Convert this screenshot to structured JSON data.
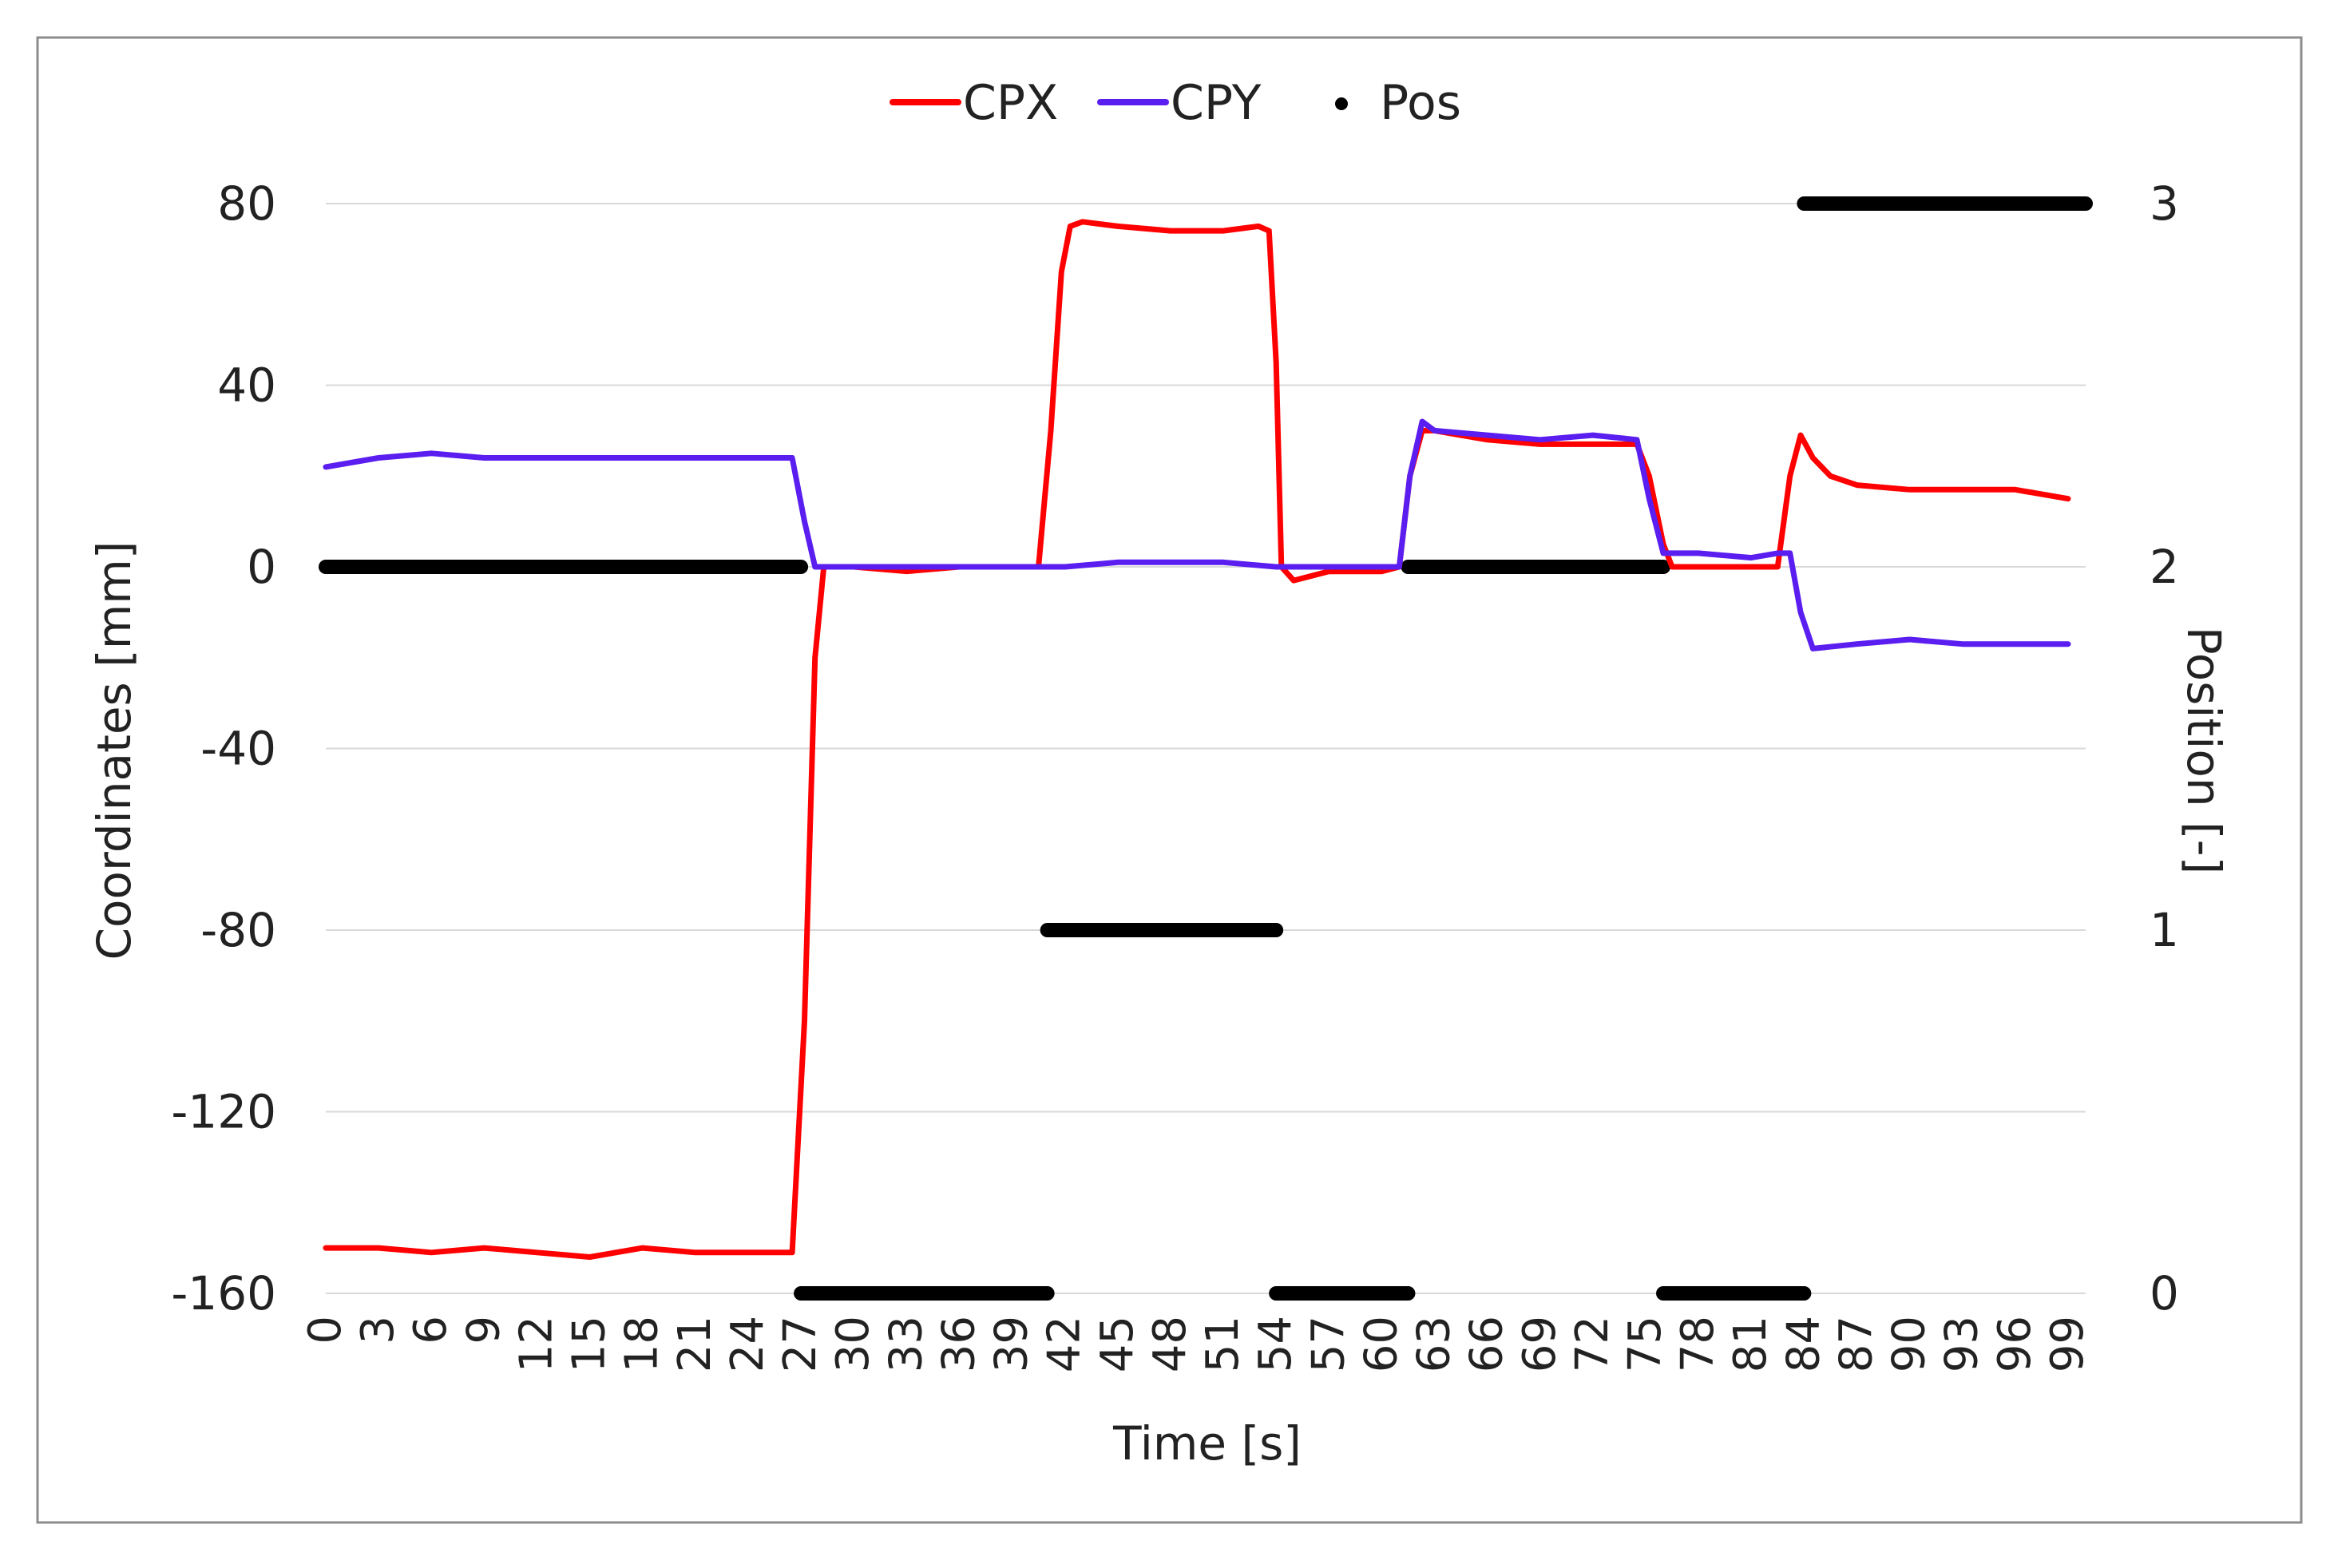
{
  "chart_data": {
    "type": "line",
    "legend": {
      "position": "top",
      "entries": [
        {
          "name": "CPX",
          "color": "#ff0000",
          "marker": "line"
        },
        {
          "name": "CPY",
          "color": "#5a1ef0",
          "marker": "line"
        },
        {
          "name": "Pos",
          "color": "#000000",
          "marker": "dot"
        }
      ]
    },
    "xlabel": "Time [s]",
    "ylabel": "Coordinates [mm]",
    "y2label": "Position [-]",
    "xlim": [
      0,
      100
    ],
    "ylim": [
      -160,
      80
    ],
    "y2lim": [
      0,
      3
    ],
    "x_ticks": [
      "0",
      "3",
      "6",
      "9",
      "12",
      "15",
      "18",
      "21",
      "24",
      "27",
      "30",
      "33",
      "36",
      "39",
      "42",
      "45",
      "48",
      "51",
      "54",
      "57",
      "60",
      "63",
      "66",
      "69",
      "72",
      "75",
      "78",
      "81",
      "84",
      "87",
      "90",
      "93",
      "96",
      "99"
    ],
    "y_ticks": [
      "80",
      "40",
      "0",
      "-40",
      "-80",
      "-120",
      "-160"
    ],
    "y2_ticks": [
      "3",
      "2",
      "1",
      "0"
    ],
    "grid": "horizontal",
    "series": [
      {
        "name": "CPX",
        "axis": "left",
        "color": "#ff0000",
        "x": [
          0,
          3,
          6,
          9,
          12,
          15,
          18,
          21,
          24,
          26.5,
          27.2,
          27.8,
          28.3,
          30,
          33,
          36,
          39,
          40.5,
          41.2,
          41.8,
          42.3,
          43,
          45,
          48,
          51,
          53,
          53.6,
          54,
          54.3,
          55,
          57,
          60,
          61,
          61.6,
          62.3,
          63,
          66,
          69,
          72,
          74.5,
          75.2,
          76,
          76.5,
          78,
          81,
          82.5,
          83.2,
          83.8,
          84.5,
          85.5,
          87,
          90,
          93,
          96,
          99
        ],
        "y": [
          -150,
          -150,
          -151,
          -150,
          -151,
          -152,
          -150,
          -151,
          -151,
          -151,
          -100,
          -20,
          0,
          0,
          -1,
          0,
          0,
          0,
          30,
          65,
          75,
          76,
          75,
          74,
          74,
          75,
          74,
          45,
          0,
          -3,
          -1,
          -1,
          0,
          20,
          30,
          30,
          28,
          27,
          27,
          27,
          20,
          5,
          0,
          0,
          0,
          0,
          20,
          29,
          24,
          20,
          18,
          17,
          17,
          17,
          15
        ]
      },
      {
        "name": "CPY",
        "axis": "left",
        "color": "#5a1ef0",
        "x": [
          0,
          3,
          6,
          9,
          12,
          15,
          18,
          21,
          24,
          26.5,
          27.2,
          27.8,
          30,
          33,
          36,
          39,
          42,
          45,
          48,
          51,
          54,
          57,
          60,
          61,
          61.6,
          62.3,
          63,
          66,
          69,
          72,
          74.5,
          75.2,
          76,
          76.5,
          78,
          81,
          82.5,
          83.2,
          83.8,
          84.5,
          87,
          90,
          93,
          96,
          99
        ],
        "y": [
          22,
          24,
          25,
          24,
          24,
          24,
          24,
          24,
          24,
          24,
          10,
          0,
          0,
          0,
          0,
          0,
          0,
          1,
          1,
          1,
          0,
          0,
          0,
          0,
          20,
          32,
          30,
          29,
          28,
          29,
          28,
          15,
          3,
          3,
          3,
          2,
          3,
          3,
          -10,
          -18,
          -17,
          -16,
          -17,
          -17,
          -17
        ]
      },
      {
        "name": "Pos",
        "axis": "right",
        "color": "#000000",
        "segments": [
          {
            "x_start": 0,
            "x_end": 27,
            "value": 2
          },
          {
            "x_start": 27,
            "x_end": 41,
            "value": 0
          },
          {
            "x_start": 41,
            "x_end": 54,
            "value": 1
          },
          {
            "x_start": 54,
            "x_end": 61.5,
            "value": 0
          },
          {
            "x_start": 61.5,
            "x_end": 76,
            "value": 2
          },
          {
            "x_start": 76,
            "x_end": 84,
            "value": 0
          },
          {
            "x_start": 84,
            "x_end": 100,
            "value": 3
          }
        ]
      }
    ]
  }
}
